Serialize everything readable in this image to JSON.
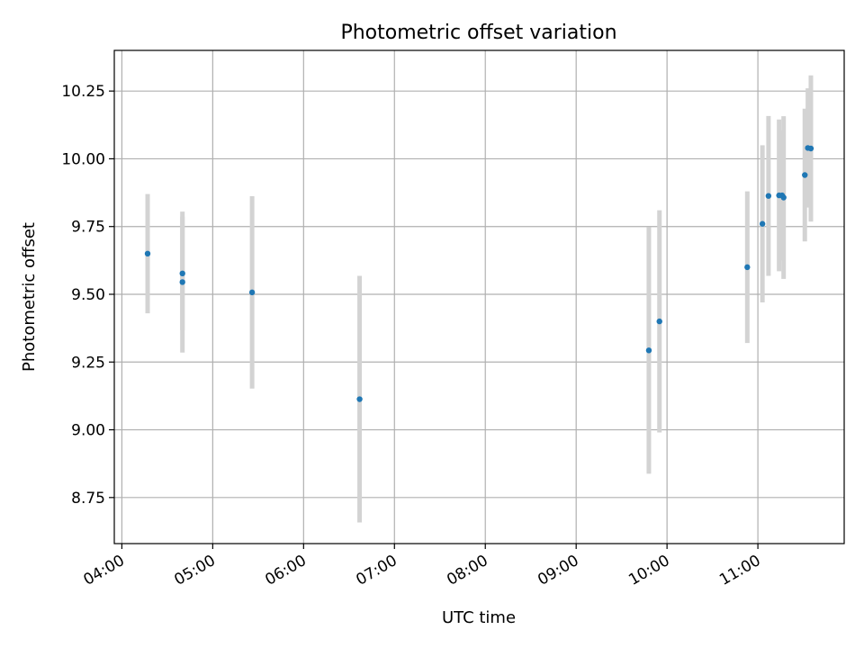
{
  "chart_data": {
    "type": "scatter",
    "title": "Photometric offset variation",
    "xlabel": "UTC time",
    "ylabel": "Photometric offset",
    "x_is_time": true,
    "xlim": [
      "03:55",
      "11:57"
    ],
    "ylim": [
      8.58,
      10.4
    ],
    "x_ticks": [
      "04:00",
      "05:00",
      "06:00",
      "07:00",
      "08:00",
      "09:00",
      "10:00",
      "11:00"
    ],
    "y_ticks": [
      8.75,
      9.0,
      9.25,
      9.5,
      9.75,
      10.0,
      10.25
    ],
    "y_tick_labels": [
      "8.75",
      "9.00",
      "9.25",
      "9.50",
      "9.75",
      "10.00",
      "10.25"
    ],
    "grid": true,
    "marker_color": "#1f77b4",
    "errorbar_color": "#d3d3d3",
    "points": [
      {
        "t": "04:17",
        "y": 9.65,
        "yerr": 0.22
      },
      {
        "t": "04:40",
        "y": 9.545,
        "yerr": 0.26
      },
      {
        "t": "04:40",
        "y": 9.577,
        "yerr": 0.21
      },
      {
        "t": "05:26",
        "y": 9.507,
        "yerr": 0.355
      },
      {
        "t": "06:37",
        "y": 9.113,
        "yerr": 0.455
      },
      {
        "t": "09:48",
        "y": 9.293,
        "yerr": 0.455
      },
      {
        "t": "09:55",
        "y": 9.4,
        "yerr": 0.41
      },
      {
        "t": "10:53",
        "y": 9.6,
        "yerr": 0.28
      },
      {
        "t": "11:03",
        "y": 9.76,
        "yerr": 0.29
      },
      {
        "t": "11:07",
        "y": 9.863,
        "yerr": 0.295
      },
      {
        "t": "11:14",
        "y": 9.865,
        "yerr": 0.28
      },
      {
        "t": "11:16",
        "y": 9.865,
        "yerr": 0.24
      },
      {
        "t": "11:17",
        "y": 9.857,
        "yerr": 0.3
      },
      {
        "t": "11:31",
        "y": 9.94,
        "yerr": 0.245
      },
      {
        "t": "11:33",
        "y": 10.04,
        "yerr": 0.22
      },
      {
        "t": "11:35",
        "y": 10.038,
        "yerr": 0.27
      }
    ]
  }
}
